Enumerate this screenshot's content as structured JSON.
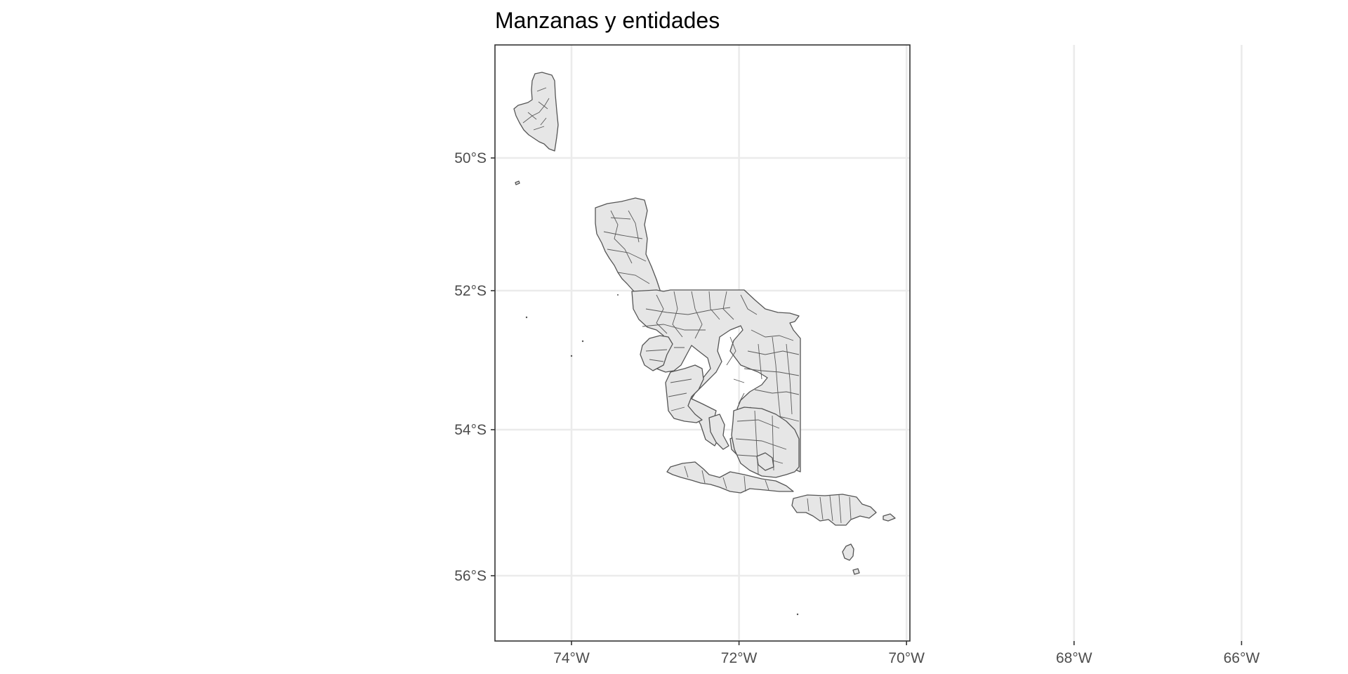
{
  "figure": {
    "title": "Manzanas y entidades"
  },
  "chart_data": {
    "type": "map",
    "title": "Manzanas y entidades",
    "x_axis": {
      "ticks": [
        -74,
        -72,
        -70,
        -68,
        -66
      ],
      "tick_labels": [
        "74°W",
        "72°W",
        "70°W",
        "68°W",
        "66°W"
      ]
    },
    "y_axis": {
      "ticks": [
        -50,
        -52,
        -54,
        -56
      ],
      "tick_labels": [
        "50°S",
        "52°S",
        "54°S",
        "56°S"
      ]
    },
    "grid": true,
    "theme": "bw",
    "fill_color": "#e6e6e6",
    "border_color": "#555555",
    "gridline_color": "#ebebeb"
  }
}
